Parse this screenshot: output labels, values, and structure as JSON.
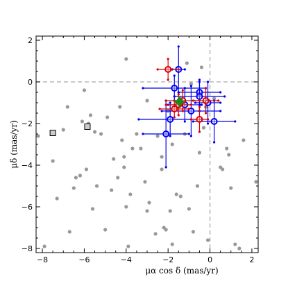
{
  "chart_data": {
    "type": "scatter",
    "xlabel": "μα cos δ (mas/yr)",
    "ylabel": "μδ (mas/yr)",
    "xlim": [
      -8.3,
      2.3
    ],
    "ylim": [
      -8.2,
      2.2
    ],
    "xticks": [
      -8,
      -6,
      -4,
      -2,
      0,
      2
    ],
    "yticks": [
      2,
      0,
      -2,
      -4,
      -6,
      -8
    ],
    "tick_labels_x": [
      "−8",
      "−6",
      "−4",
      "−2",
      "0",
      "2"
    ],
    "tick_labels_y": [
      "2",
      "0",
      "−2",
      "−4",
      "−6",
      "−8"
    ],
    "reference_lines": {
      "x": 0,
      "y": 0,
      "style": "dashed",
      "color": "#aaaaaa"
    },
    "colors": {
      "background": "#999999",
      "blue": "#0000ee",
      "red": "#dd0000",
      "green": "#1a8a1a",
      "reference": "#aaaaaa"
    },
    "series": [
      {
        "role": "background field stars",
        "marker": "dot",
        "points": [
          [
            -8.2,
            -2.6
          ],
          [
            -7.9,
            -7.9
          ],
          [
            -7.5,
            -3.8
          ],
          [
            -7.3,
            -5.6
          ],
          [
            -7.0,
            -2.3
          ],
          [
            -6.8,
            -1.2
          ],
          [
            -6.7,
            -7.2
          ],
          [
            -6.5,
            -5.1
          ],
          [
            -6.4,
            -4.6
          ],
          [
            -6.2,
            -4.5
          ],
          [
            -6.1,
            -1.9
          ],
          [
            -6.0,
            -0.4
          ],
          [
            -5.9,
            -4.2
          ],
          [
            -5.8,
            -2.0
          ],
          [
            -5.7,
            -1.6
          ],
          [
            -5.6,
            -6.1
          ],
          [
            -5.5,
            -2.4
          ],
          [
            -5.4,
            -5.0
          ],
          [
            -5.2,
            -2.5
          ],
          [
            -5.0,
            -7.1
          ],
          [
            -4.9,
            -1.7
          ],
          [
            -4.7,
            -5.2
          ],
          [
            -4.6,
            -3.7
          ],
          [
            -4.4,
            -4.6
          ],
          [
            -4.3,
            -1.2
          ],
          [
            -4.2,
            -2.8
          ],
          [
            -4.1,
            -3.6
          ],
          [
            -4.1,
            -4.1
          ],
          [
            -4.0,
            1.1
          ],
          [
            -4.0,
            -6.0
          ],
          [
            -3.9,
            -7.9
          ],
          [
            -3.8,
            -5.4
          ],
          [
            -3.7,
            -3.2
          ],
          [
            -3.5,
            -2.5
          ],
          [
            -3.3,
            -3.2
          ],
          [
            -3.1,
            -4.8
          ],
          [
            -3.0,
            -0.9
          ],
          [
            -3.0,
            -6.2
          ],
          [
            -2.9,
            -5.8
          ],
          [
            -2.6,
            -7.3
          ],
          [
            -2.5,
            -2.6
          ],
          [
            -2.3,
            -3.6
          ],
          [
            -2.3,
            -4.2
          ],
          [
            -2.2,
            -7.0
          ],
          [
            -2.1,
            -7.1
          ],
          [
            -2.0,
            -1.4
          ],
          [
            -1.9,
            -6.2
          ],
          [
            -1.8,
            -3.0
          ],
          [
            -1.8,
            -7.8
          ],
          [
            -1.6,
            -5.4
          ],
          [
            -1.4,
            -5.5
          ],
          [
            -1.2,
            -2.5
          ],
          [
            -1.1,
            0.9
          ],
          [
            -1.0,
            -6.1
          ],
          [
            -0.9,
            -0.1
          ],
          [
            -0.8,
            -7.2
          ],
          [
            -0.6,
            -5.0
          ],
          [
            -0.5,
            -3.4
          ],
          [
            -0.4,
            0.7
          ],
          [
            -0.3,
            -2.2
          ],
          [
            -0.2,
            -1.2
          ],
          [
            -0.1,
            -7.6
          ],
          [
            0.2,
            -0.8
          ],
          [
            0.5,
            -4.1
          ],
          [
            0.6,
            -4.2
          ],
          [
            0.8,
            -3.2
          ],
          [
            0.9,
            -3.5
          ],
          [
            1.0,
            -5.1
          ],
          [
            1.2,
            -7.8
          ],
          [
            1.4,
            -8.0
          ],
          [
            1.6,
            -2.8
          ],
          [
            2.2,
            -4.8
          ]
        ]
      },
      {
        "role": "squares",
        "marker": "square",
        "points": [
          [
            -7.5,
            -2.45
          ],
          [
            -5.85,
            -2.15
          ]
        ]
      },
      {
        "role": "blue members",
        "marker": "open-circle",
        "points": [
          {
            "x": -1.5,
            "y": 0.6,
            "ex": 0.3,
            "ey": 1.1
          },
          {
            "x": -1.7,
            "y": -0.3,
            "ex": 1.5,
            "ey": 0.6
          },
          {
            "x": -0.5,
            "y": -0.5,
            "ex": 1.0,
            "ey": 0.6
          },
          {
            "x": -0.5,
            "y": -0.7,
            "ex": 1.2,
            "ey": 0.7
          },
          {
            "x": -1.2,
            "y": -1.1,
            "ex": 0.8,
            "ey": 0.8
          },
          {
            "x": -0.9,
            "y": -1.4,
            "ex": 1.4,
            "ey": 1.2
          },
          {
            "x": -0.1,
            "y": -1.0,
            "ex": 0.6,
            "ey": 1.0
          },
          {
            "x": 0.2,
            "y": -1.9,
            "ex": 1.0,
            "ey": 1.0
          },
          {
            "x": -1.9,
            "y": -1.8,
            "ex": 1.5,
            "ey": 0.8
          },
          {
            "x": -2.1,
            "y": -2.5,
            "ex": 1.1,
            "ey": 1.6
          }
        ]
      },
      {
        "role": "red members",
        "marker": "open-circle",
        "points": [
          {
            "x": -2.0,
            "y": 0.6,
            "ex": 0.5,
            "ey": 0.5
          },
          {
            "x": -1.3,
            "y": -0.9,
            "ex": 0.8,
            "ey": 0.5
          },
          {
            "x": -1.5,
            "y": -1.1,
            "ex": 0.6,
            "ey": 0.5
          },
          {
            "x": -1.7,
            "y": -1.3,
            "ex": 0.7,
            "ey": 0.4
          },
          {
            "x": -0.2,
            "y": -0.9,
            "ex": 0.6,
            "ey": 0.6
          },
          {
            "x": -0.5,
            "y": -1.8,
            "ex": 0.4,
            "ey": 0.6
          }
        ]
      },
      {
        "role": "green mean",
        "marker": "filled-circle",
        "points": [
          {
            "x": -1.45,
            "y": -0.95,
            "ex": 0.2,
            "ey": 0.2
          }
        ]
      }
    ]
  }
}
